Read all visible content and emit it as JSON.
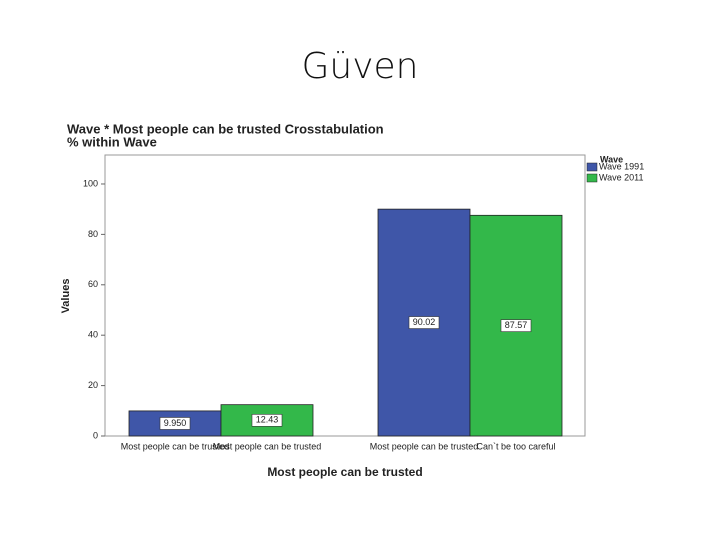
{
  "slide_title": "Güven",
  "chart_data": {
    "type": "bar",
    "title": "Wave * Most people can be trusted Crosstabulation",
    "subtitle": "% within Wave",
    "y_label": "Values",
    "x_label": "Most people can be trusted",
    "bar_labels": [
      [
        "Most people can be trusted",
        "Most people can be trusted"
      ],
      [
        "Most people can be trusted",
        "Can`t be too careful"
      ]
    ],
    "legend_title": "Wave",
    "legend_position": "top-right",
    "series": [
      {
        "name": "Wave 1991",
        "color": "#3f56a8",
        "values": [
          9.95,
          90.02
        ],
        "value_labels": [
          "9.950",
          "90.02"
        ]
      },
      {
        "name": "Wave 2011",
        "color": "#33b84a",
        "values": [
          12.43,
          87.57
        ]
      }
    ],
    "ylim": [
      0,
      111.5
    ],
    "yticks": [
      0,
      20,
      40,
      60,
      80,
      100
    ]
  }
}
